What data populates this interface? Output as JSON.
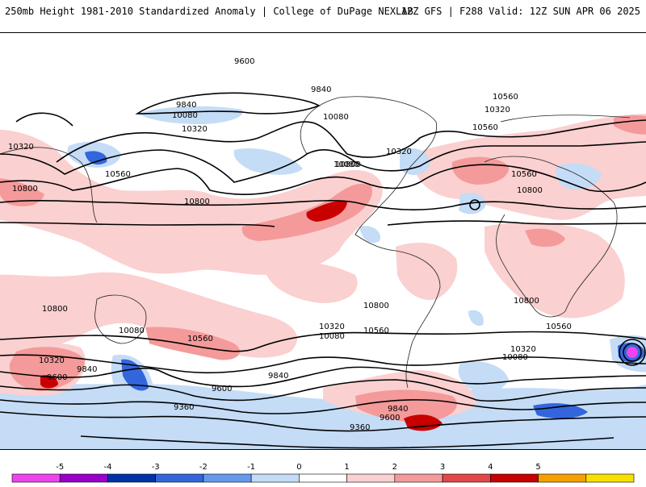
{
  "header": {
    "title_left": "250mb Height 1981-2010 Standardized Anomaly | College of DuPage NEXLAB",
    "title_right": "12Z GFS | F288 Valid: 12Z SUN APR 06 2025"
  },
  "contour_labels": [
    "9600",
    "9840",
    "10080",
    "10320",
    "10560",
    "10800",
    "9840",
    "10080",
    "10320",
    "10560",
    "10800",
    "10320",
    "10560",
    "10800",
    "10080",
    "10320",
    "10560",
    "10800",
    "10800",
    "10560",
    "10320",
    "10080",
    "9840",
    "9600",
    "9360",
    "10080",
    "10320",
    "10560",
    "10800",
    "9840",
    "9600",
    "9360",
    "10080",
    "10320",
    "10560",
    "10800",
    "9840",
    "9600"
  ],
  "colorbar": {
    "ticks": [
      "-5",
      "-4",
      "-3",
      "-2",
      "-1",
      "0",
      "1",
      "2",
      "3",
      "4",
      "5"
    ],
    "colors": [
      "#ee44ee",
      "#9900cc",
      "#0033aa",
      "#3366dd",
      "#6699ee",
      "#c4dcf6",
      "#ffffff",
      "#fbd0d0",
      "#f49a9a",
      "#e24848",
      "#c80000",
      "#f5a000",
      "#f7e000"
    ]
  }
}
